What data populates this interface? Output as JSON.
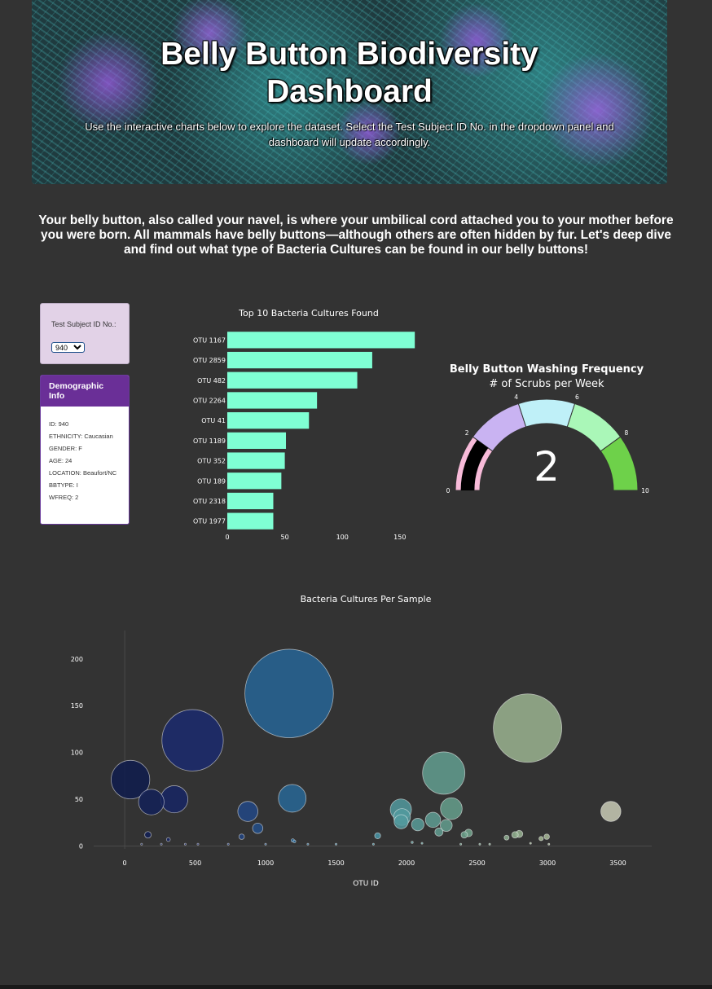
{
  "header": {
    "title": "Belly Button Biodiversity Dashboard",
    "subtitle": "Use the interactive charts below to explore the dataset. Select the Test Subject ID No. in the dropdown panel and dashboard will update accordingly."
  },
  "intro": "Your belly button, also called your navel, is where your umbilical cord attached you to your mother before you were born. All mammals have belly buttons—although others are often hidden by fur. Let's deep dive and find out what type of Bacteria Cultures can be found in our belly buttons!",
  "selector": {
    "label": "Test Subject ID No.:",
    "selected": "940"
  },
  "demographics": {
    "heading": "Demographic Info",
    "lines": [
      "ID: 940",
      "ETHNICITY: Caucasian",
      "GENDER: F",
      "AGE: 24",
      "LOCATION: Beaufort/NC",
      "BBTYPE: I",
      "WFREQ: 2"
    ]
  },
  "colors": {
    "background": "#333333",
    "bar": "#7fffd4",
    "demo_heading": "#6a2f97",
    "selector_panel": "#e2d2e7"
  },
  "chart_data": [
    {
      "type": "bar",
      "orientation": "horizontal",
      "title": "Top 10 Bacteria Cultures Found",
      "categories": [
        "OTU 1167",
        "OTU 2859",
        "OTU 482",
        "OTU 2264",
        "OTU 41",
        "OTU 1189",
        "OTU 352",
        "OTU 189",
        "OTU 2318",
        "OTU 1977"
      ],
      "values": [
        163,
        126,
        113,
        78,
        71,
        51,
        50,
        47,
        40,
        40
      ],
      "xlim": [
        0,
        165
      ],
      "xticks": [
        0,
        50,
        100,
        150
      ],
      "color": "#7fffd4"
    },
    {
      "type": "gauge",
      "title": "Belly Button Washing Frequency",
      "subtitle": "# of Scrubs per Week",
      "value": 2,
      "range": [
        0,
        10
      ],
      "ticks": [
        0,
        2,
        4,
        6,
        8,
        10
      ],
      "steps": [
        {
          "range": [
            0,
            2
          ],
          "color": "#f8bbd9"
        },
        {
          "range": [
            2,
            4
          ],
          "color": "#c9b3f2"
        },
        {
          "range": [
            4,
            6
          ],
          "color": "#bff0f8"
        },
        {
          "range": [
            6,
            8
          ],
          "color": "#aaf7b8"
        },
        {
          "range": [
            8,
            10
          ],
          "color": "#6ed14a"
        }
      ],
      "bar_color": "#000000"
    },
    {
      "type": "scatter",
      "title": "Bacteria Cultures Per Sample",
      "xlabel": "OTU ID",
      "ylabel": "",
      "xlim": [
        -220,
        3740
      ],
      "ylim": [
        -3,
        232
      ],
      "xticks": [
        0,
        500,
        1000,
        1500,
        2000,
        2500,
        3000,
        3500
      ],
      "yticks": [
        0,
        50,
        100,
        150,
        200
      ],
      "grid": false,
      "colorscale": "Earth",
      "points": [
        {
          "x": 41,
          "y": 71
        },
        {
          "x": 189,
          "y": 47
        },
        {
          "x": 352,
          "y": 50
        },
        {
          "x": 482,
          "y": 113
        },
        {
          "x": 1167,
          "y": 163
        },
        {
          "x": 1189,
          "y": 51
        },
        {
          "x": 874,
          "y": 37
        },
        {
          "x": 944,
          "y": 19
        },
        {
          "x": 165,
          "y": 12
        },
        {
          "x": 310,
          "y": 7
        },
        {
          "x": 830,
          "y": 10
        },
        {
          "x": 1795,
          "y": 11
        },
        {
          "x": 1960,
          "y": 39
        },
        {
          "x": 1968,
          "y": 31
        },
        {
          "x": 1962,
          "y": 26
        },
        {
          "x": 2080,
          "y": 23
        },
        {
          "x": 2188,
          "y": 28
        },
        {
          "x": 2230,
          "y": 15
        },
        {
          "x": 2264,
          "y": 78
        },
        {
          "x": 2318,
          "y": 40
        },
        {
          "x": 2282,
          "y": 22
        },
        {
          "x": 2410,
          "y": 12
        },
        {
          "x": 2440,
          "y": 14
        },
        {
          "x": 2859,
          "y": 126
        },
        {
          "x": 3450,
          "y": 37
        },
        {
          "x": 2770,
          "y": 12
        },
        {
          "x": 2800,
          "y": 13
        },
        {
          "x": 2955,
          "y": 8
        },
        {
          "x": 2995,
          "y": 10
        },
        {
          "x": 2710,
          "y": 9
        },
        {
          "x": 1193,
          "y": 6
        },
        {
          "x": 1205,
          "y": 5
        },
        {
          "x": 1000,
          "y": 2
        },
        {
          "x": 1300,
          "y": 2
        },
        {
          "x": 1500,
          "y": 2
        },
        {
          "x": 2040,
          "y": 4
        },
        {
          "x": 2110,
          "y": 3
        },
        {
          "x": 2520,
          "y": 2
        },
        {
          "x": 2590,
          "y": 2
        },
        {
          "x": 2880,
          "y": 3
        },
        {
          "x": 120,
          "y": 2
        },
        {
          "x": 260,
          "y": 2
        },
        {
          "x": 430,
          "y": 2
        },
        {
          "x": 520,
          "y": 2
        },
        {
          "x": 735,
          "y": 2
        },
        {
          "x": 1765,
          "y": 2
        },
        {
          "x": 2385,
          "y": 2
        },
        {
          "x": 3010,
          "y": 2
        }
      ]
    }
  ]
}
